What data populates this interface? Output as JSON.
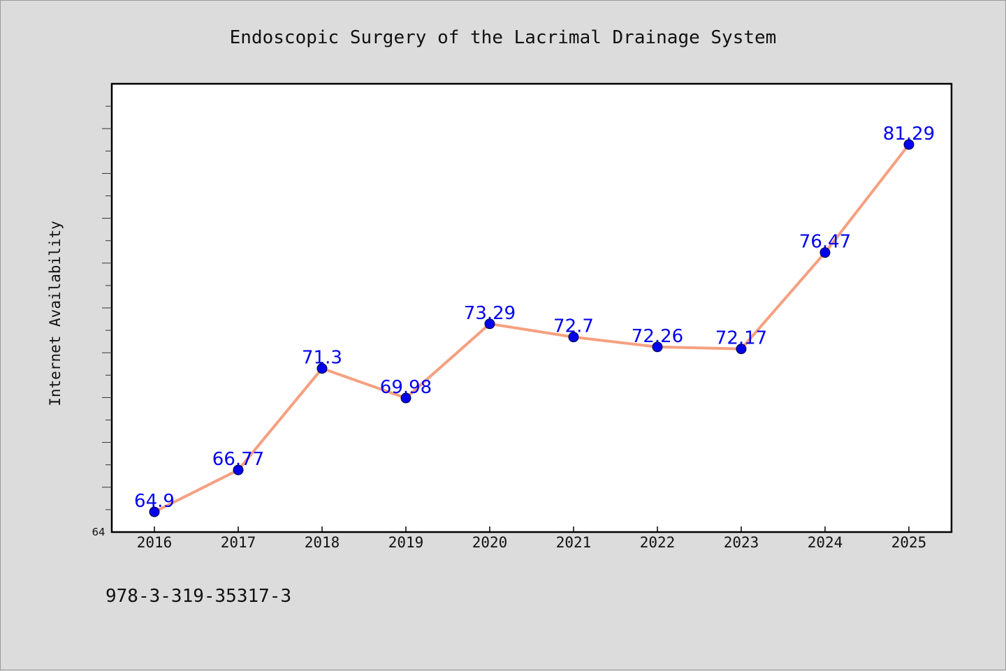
{
  "chart_data": {
    "type": "line",
    "title": "Endoscopic Surgery of the Lacrimal Drainage System",
    "xlabel": "",
    "ylabel": "Internet Availability",
    "categories": [
      "2016",
      "2017",
      "2018",
      "2019",
      "2020",
      "2021",
      "2022",
      "2023",
      "2024",
      "2025"
    ],
    "series": [
      {
        "values": [
          64.9,
          66.77,
          71.3,
          69.98,
          73.29,
          72.7,
          72.26,
          72.17,
          76.47,
          81.29
        ],
        "labels": [
          "64.9",
          "66.77",
          "71.3",
          "69.98",
          "73.29",
          "72.7",
          "72.26",
          "72.17",
          "76.47",
          "81.29"
        ]
      }
    ],
    "ylim": [
      64,
      84
    ],
    "y_tick_label": "64",
    "grid": false,
    "line_color": "#f5a080",
    "marker_color": "#0000ee",
    "label_color": "#0000ee"
  },
  "footer": {
    "isbn": "978-3-319-35317-3"
  }
}
